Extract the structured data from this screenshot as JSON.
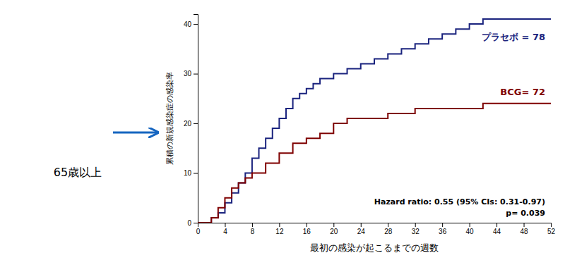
{
  "chart_data": {
    "type": "line",
    "xlabel": "最初の感染が起こるまでの週数",
    "ylabel": "累積の新規感染症の感染率",
    "annotations": [
      "65歳以上",
      "Hazard ratio: 0.55 (95% CIs: 0.31-0.97)",
      "p= 0.039"
    ],
    "xlim": [
      0,
      52
    ],
    "ylim": [
      0,
      42
    ],
    "xticks": [
      0,
      4,
      8,
      12,
      16,
      20,
      24,
      28,
      32,
      36,
      40,
      44,
      48,
      52
    ],
    "yticks": [
      0,
      10,
      20,
      30,
      40
    ],
    "grid": false,
    "series": [
      {
        "name": "プラセボ = 78",
        "color": "#1a237e",
        "x": [
          0,
          2,
          2,
          3,
          3,
          4,
          4,
          5,
          5,
          6,
          6,
          7,
          7,
          8,
          8,
          9,
          9,
          10,
          10,
          11,
          11,
          12,
          12,
          13,
          13,
          14,
          14,
          15,
          15,
          16,
          16,
          17,
          17,
          18,
          18,
          20,
          20,
          22,
          22,
          24,
          24,
          26,
          26,
          28,
          28,
          30,
          30,
          32,
          32,
          34,
          34,
          36,
          36,
          38,
          38,
          40,
          40,
          42,
          42,
          44,
          44,
          46,
          46,
          48,
          48,
          50,
          50,
          52
        ],
        "values": [
          0,
          0,
          1,
          1,
          2,
          2,
          4,
          4,
          6,
          6,
          8,
          8,
          10,
          10,
          13,
          13,
          15,
          15,
          17,
          17,
          19,
          19,
          21,
          21,
          23,
          23,
          25,
          25,
          26,
          26,
          27,
          27,
          28,
          28,
          29,
          29,
          30,
          30,
          31,
          31,
          32,
          32,
          33,
          33,
          34,
          34,
          35,
          35,
          36,
          36,
          37,
          37,
          38,
          38,
          39,
          39,
          40,
          40,
          41,
          41,
          41,
          41,
          41,
          41,
          41,
          41,
          41,
          41
        ]
      },
      {
        "name": "BCG= 72",
        "color": "#7f0000",
        "x": [
          0,
          2,
          2,
          3,
          3,
          4,
          4,
          5,
          5,
          6,
          6,
          7,
          7,
          8,
          8,
          10,
          10,
          12,
          12,
          14,
          14,
          16,
          16,
          18,
          18,
          20,
          20,
          22,
          22,
          24,
          24,
          26,
          26,
          28,
          28,
          30,
          30,
          32,
          32,
          34,
          34,
          36,
          36,
          38,
          38,
          40,
          40,
          42,
          42,
          44,
          44,
          46,
          46,
          48,
          48,
          50,
          50,
          52
        ],
        "values": [
          0,
          0,
          1,
          1,
          3,
          3,
          5,
          5,
          7,
          7,
          8,
          8,
          9,
          9,
          10,
          10,
          12,
          12,
          14,
          14,
          16,
          16,
          17,
          17,
          18,
          18,
          20,
          20,
          21,
          21,
          21,
          21,
          21,
          21,
          22,
          22,
          22,
          22,
          23,
          23,
          23,
          23,
          23,
          23,
          23,
          23,
          23,
          23,
          24,
          24,
          24,
          24,
          24,
          24,
          24,
          24,
          24,
          24
        ]
      }
    ]
  }
}
